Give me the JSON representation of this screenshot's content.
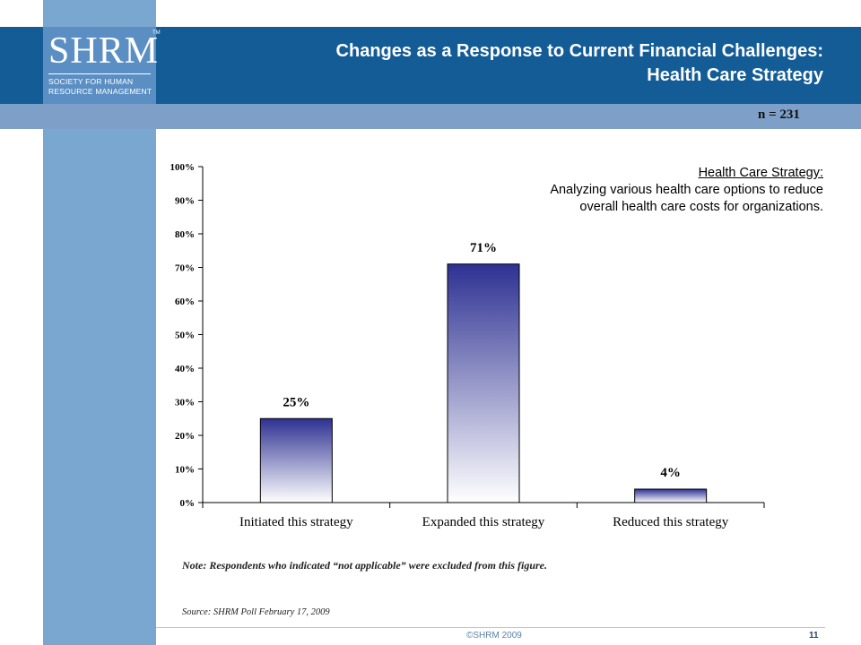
{
  "logo": {
    "word": "SHRM",
    "tm": "TM",
    "line1": "SOCIETY FOR HUMAN",
    "line2": "RESOURCE MANAGEMENT"
  },
  "slide": {
    "title_line1": "Changes as a Response to Current Financial Challenges:",
    "title_line2": "Health Care Strategy",
    "sample_size": "n = 231",
    "caption_heading": "Health Care Strategy:",
    "caption_body": "Analyzing various health care options to reduce overall health care costs for organizations.",
    "note": "Note: Respondents who indicated “not applicable” were excluded from this figure.",
    "source": "Source: SHRM Poll February 17, 2009",
    "copyright": "©SHRM 2009",
    "page_number": "11"
  },
  "colors": {
    "header": "#145c96",
    "stripe": "#7aa7cf",
    "bar_top": "#2e3192",
    "bar_bottom": "#ffffff"
  },
  "chart_data": {
    "type": "bar",
    "categories": [
      "Initiated this strategy",
      "Expanded this strategy",
      "Reduced this strategy"
    ],
    "values": [
      25,
      71,
      4
    ],
    "data_labels": [
      "25%",
      "71%",
      "4%"
    ],
    "y_ticks": [
      "0%",
      "10%",
      "20%",
      "30%",
      "40%",
      "50%",
      "60%",
      "70%",
      "80%",
      "90%",
      "100%"
    ],
    "ylim": [
      0,
      100
    ],
    "grid": false
  }
}
